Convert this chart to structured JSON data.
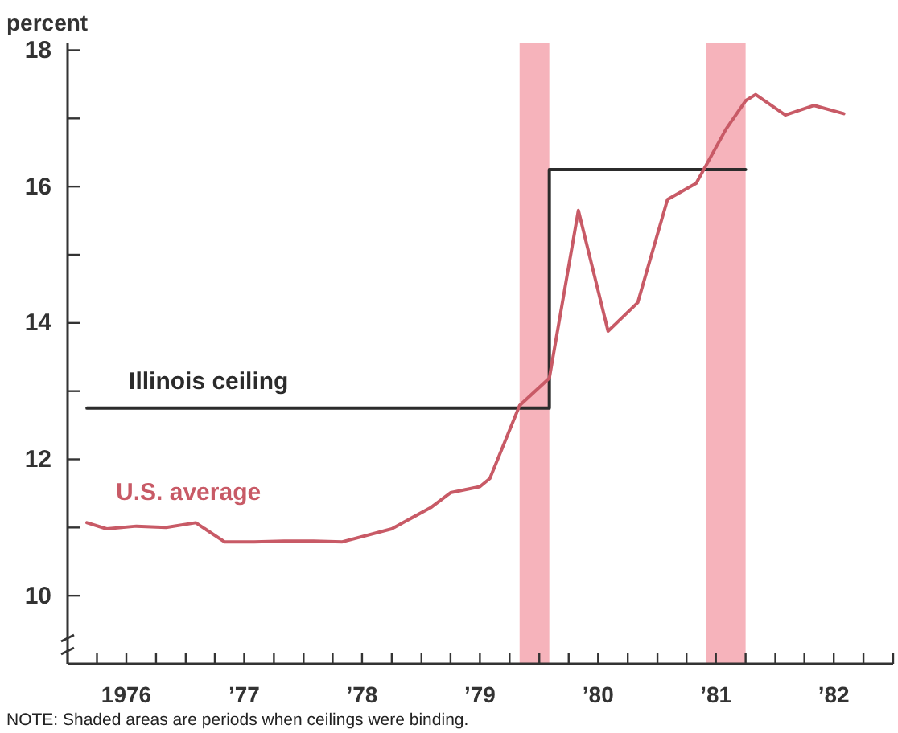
{
  "chart_data": {
    "type": "line",
    "ylabel": "percent",
    "xlim": [
      "1976-01",
      "1983-01"
    ],
    "xticks": [
      {
        "value": "1976-01",
        "label": null
      },
      {
        "value": "1976-04",
        "label": null
      },
      {
        "value": "1976-07",
        "label": "1976"
      },
      {
        "value": "1976-10",
        "label": null
      },
      {
        "value": "1977-01",
        "label": null
      },
      {
        "value": "1977-04",
        "label": null
      },
      {
        "value": "1977-07",
        "label": "’77"
      },
      {
        "value": "1977-10",
        "label": null
      },
      {
        "value": "1978-01",
        "label": null
      },
      {
        "value": "1978-04",
        "label": null
      },
      {
        "value": "1978-07",
        "label": "’78"
      },
      {
        "value": "1978-10",
        "label": null
      },
      {
        "value": "1979-01",
        "label": null
      },
      {
        "value": "1979-04",
        "label": null
      },
      {
        "value": "1979-07",
        "label": "’79"
      },
      {
        "value": "1979-10",
        "label": null
      },
      {
        "value": "1980-01",
        "label": null
      },
      {
        "value": "1980-04",
        "label": null
      },
      {
        "value": "1980-07",
        "label": "’80"
      },
      {
        "value": "1980-10",
        "label": null
      },
      {
        "value": "1981-01",
        "label": null
      },
      {
        "value": "1981-04",
        "label": null
      },
      {
        "value": "1981-07",
        "label": "’81"
      },
      {
        "value": "1981-10",
        "label": null
      },
      {
        "value": "1982-01",
        "label": null
      },
      {
        "value": "1982-04",
        "label": null
      },
      {
        "value": "1982-07",
        "label": "’82"
      },
      {
        "value": "1982-10",
        "label": null
      },
      {
        "value": "1983-01",
        "label": null
      }
    ],
    "ylim": [
      9,
      18.1
    ],
    "yticks": [
      10,
      {
        "value": 11,
        "label": null
      },
      12,
      {
        "value": 13,
        "label": null
      },
      14,
      {
        "value": 15,
        "label": null
      },
      16,
      {
        "value": 17,
        "label": null
      },
      18
    ],
    "grid": false,
    "legend": false,
    "marker": "none",
    "line_style": "solid",
    "series": [
      {
        "name": "Illinois ceiling",
        "color": "#2b2b2b",
        "x": [
          "1976-03",
          "1980-02",
          "1980-02",
          "1981-10"
        ],
        "values": [
          12.75,
          12.75,
          16.25,
          16.25
        ]
      },
      {
        "name": "U.S. average",
        "color": "#c85a66",
        "x": [
          "1976-03",
          "1976-05",
          "1976-08",
          "1976-11",
          "1977-02",
          "1977-05",
          "1977-08",
          "1977-11",
          "1978-02",
          "1978-05",
          "1978-10",
          "1979-02",
          "1979-04",
          "1979-07",
          "1979-08",
          "1979-11",
          "1980-02",
          "1980-05",
          "1980-08",
          "1980-11",
          "1981-02",
          "1981-05",
          "1981-08",
          "1981-10",
          "1981-11",
          "1982-02",
          "1982-05",
          "1982-08"
        ],
        "values": [
          11.07,
          10.98,
          11.02,
          11.0,
          11.07,
          10.79,
          10.79,
          10.8,
          10.8,
          10.79,
          10.98,
          11.3,
          11.51,
          11.6,
          11.72,
          12.79,
          13.19,
          15.65,
          13.88,
          14.3,
          15.81,
          16.05,
          16.84,
          17.26,
          17.35,
          17.05,
          17.19,
          17.07
        ]
      }
    ],
    "bands": [
      {
        "axis": "x",
        "from": "1979-11",
        "to": "1980-02",
        "color": "#f6b3bb"
      },
      {
        "axis": "x",
        "from": "1981-06",
        "to": "1981-10",
        "color": "#f6b3bb"
      }
    ],
    "annotations": [
      "NOTE: Shaded areas are periods when ceilings were binding."
    ]
  }
}
